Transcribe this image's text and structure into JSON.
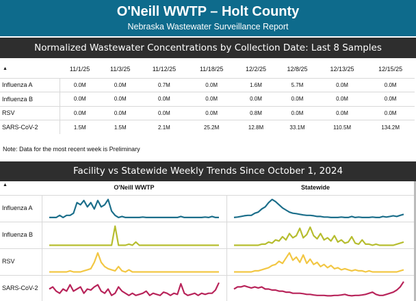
{
  "header": {
    "title": "O'Neill WWTP – Holt County",
    "subtitle": "Nebraska Wastewater Surveillance Report"
  },
  "samples_section": {
    "title": "Normalized Wastewater Concentrations by Collection Date: Last 8 Samples",
    "sort_icon": "▲",
    "dates": [
      "11/1/25",
      "11/3/25",
      "11/12/25",
      "11/18/25",
      "12/2/25",
      "12/8/25",
      "12/13/25",
      "12/15/25"
    ],
    "rows": [
      {
        "label": "Influenza A",
        "values": [
          "0.0M",
          "0.0M",
          "0.7M",
          "0.0M",
          "1.6M",
          "5.7M",
          "0.0M",
          "0.0M"
        ]
      },
      {
        "label": "Influenza B",
        "values": [
          "0.0M",
          "0.0M",
          "0.0M",
          "0.0M",
          "0.0M",
          "0.0M",
          "0.0M",
          "0.0M"
        ]
      },
      {
        "label": "RSV",
        "values": [
          "0.0M",
          "0.0M",
          "0.0M",
          "0.0M",
          "0.8M",
          "0.0M",
          "0.0M",
          "0.0M"
        ]
      },
      {
        "label": "SARS-CoV-2",
        "values": [
          "1.5M",
          "1.5M",
          "2.1M",
          "25.2M",
          "12.8M",
          "33.1M",
          "110.5M",
          "134.2M"
        ]
      }
    ],
    "note": "Note: Data for the most recent week is Preliminary"
  },
  "trends_section": {
    "title": "Facility vs Statewide Weekly Trends Since October 1, 2024",
    "sort_icon": "▲",
    "facility_header": "O'Neill WWTP",
    "statewide_header": "Statewide",
    "rows": [
      {
        "label": "Influenza A",
        "color": "#1b6e8a",
        "facility": [
          0.1,
          0.1,
          0.1,
          0.2,
          0.1,
          0.2,
          0.2,
          0.3,
          0.8,
          0.7,
          0.9,
          0.6,
          0.8,
          0.5,
          0.9,
          0.6,
          0.7,
          0.95,
          0.4,
          0.2,
          0.1,
          0.15,
          0.1,
          0.1,
          0.1,
          0.1,
          0.1,
          0.12,
          0.1,
          0.1,
          0.1,
          0.1,
          0.1,
          0.1,
          0.1,
          0.1,
          0.1,
          0.1,
          0.15,
          0.1,
          0.1,
          0.1,
          0.1,
          0.1,
          0.1,
          0.12,
          0.1,
          0.15,
          0.1,
          0.1
        ],
        "statewide": [
          0.1,
          0.12,
          0.15,
          0.18,
          0.2,
          0.2,
          0.3,
          0.35,
          0.5,
          0.6,
          0.8,
          0.95,
          0.85,
          0.7,
          0.55,
          0.45,
          0.35,
          0.3,
          0.28,
          0.25,
          0.22,
          0.2,
          0.2,
          0.18,
          0.15,
          0.15,
          0.12,
          0.12,
          0.1,
          0.1,
          0.1,
          0.12,
          0.1,
          0.1,
          0.15,
          0.1,
          0.12,
          0.1,
          0.1,
          0.1,
          0.12,
          0.1,
          0.1,
          0.15,
          0.12,
          0.15,
          0.18,
          0.15,
          0.2,
          0.25
        ]
      },
      {
        "label": "Influenza B",
        "color": "#b6bd2f",
        "facility": [
          0.05,
          0.05,
          0.05,
          0.05,
          0.05,
          0.05,
          0.05,
          0.05,
          0.05,
          0.05,
          0.05,
          0.05,
          0.05,
          0.05,
          0.05,
          0.05,
          0.05,
          0.05,
          0.05,
          0.95,
          0.05,
          0.05,
          0.05,
          0.1,
          0.05,
          0.2,
          0.05,
          0.05,
          0.05,
          0.05,
          0.05,
          0.05,
          0.05,
          0.05,
          0.05,
          0.05,
          0.05,
          0.05,
          0.05,
          0.05,
          0.05,
          0.05,
          0.05,
          0.05,
          0.05,
          0.05,
          0.05,
          0.05,
          0.05,
          0.05
        ],
        "statewide": [
          0.05,
          0.05,
          0.05,
          0.05,
          0.05,
          0.05,
          0.05,
          0.05,
          0.1,
          0.1,
          0.2,
          0.15,
          0.3,
          0.25,
          0.45,
          0.3,
          0.6,
          0.4,
          0.5,
          0.85,
          0.4,
          0.55,
          0.9,
          0.5,
          0.35,
          0.6,
          0.3,
          0.4,
          0.25,
          0.5,
          0.2,
          0.3,
          0.15,
          0.2,
          0.45,
          0.15,
          0.1,
          0.3,
          0.1,
          0.1,
          0.05,
          0.1,
          0.05,
          0.05,
          0.05,
          0.05,
          0.05,
          0.1,
          0.15,
          0.2
        ]
      },
      {
        "label": "RSV",
        "color": "#f2c744",
        "facility": [
          0.05,
          0.05,
          0.05,
          0.05,
          0.05,
          0.05,
          0.1,
          0.05,
          0.05,
          0.05,
          0.1,
          0.15,
          0.2,
          0.5,
          0.95,
          0.5,
          0.3,
          0.2,
          0.15,
          0.1,
          0.3,
          0.1,
          0.05,
          0.15,
          0.05,
          0.05,
          0.05,
          0.05,
          0.05,
          0.05,
          0.05,
          0.05,
          0.05,
          0.05,
          0.05,
          0.05,
          0.05,
          0.05,
          0.05,
          0.05,
          0.05,
          0.05,
          0.05,
          0.05,
          0.05,
          0.05,
          0.05,
          0.05,
          0.05,
          0.05
        ],
        "statewide": [
          0.05,
          0.05,
          0.05,
          0.05,
          0.05,
          0.05,
          0.1,
          0.1,
          0.15,
          0.2,
          0.25,
          0.35,
          0.4,
          0.55,
          0.45,
          0.7,
          0.95,
          0.6,
          0.75,
          0.5,
          0.85,
          0.45,
          0.65,
          0.4,
          0.5,
          0.3,
          0.4,
          0.25,
          0.35,
          0.2,
          0.25,
          0.15,
          0.2,
          0.15,
          0.1,
          0.15,
          0.1,
          0.1,
          0.05,
          0.1,
          0.05,
          0.05,
          0.05,
          0.05,
          0.05,
          0.05,
          0.05,
          0.05,
          0.1,
          0.15
        ]
      },
      {
        "label": "SARS-CoV-2",
        "color": "#b8245a",
        "facility": [
          0.5,
          0.6,
          0.4,
          0.3,
          0.5,
          0.4,
          0.7,
          0.4,
          0.5,
          0.6,
          0.3,
          0.5,
          0.45,
          0.6,
          0.7,
          0.4,
          0.3,
          0.5,
          0.2,
          0.3,
          0.6,
          0.4,
          0.3,
          0.2,
          0.3,
          0.2,
          0.25,
          0.3,
          0.4,
          0.2,
          0.3,
          0.25,
          0.2,
          0.35,
          0.3,
          0.2,
          0.3,
          0.25,
          0.75,
          0.3,
          0.2,
          0.25,
          0.3,
          0.2,
          0.3,
          0.25,
          0.3,
          0.3,
          0.45,
          0.8
        ],
        "statewide": [
          0.5,
          0.6,
          0.6,
          0.65,
          0.6,
          0.55,
          0.6,
          0.55,
          0.6,
          0.5,
          0.5,
          0.45,
          0.45,
          0.4,
          0.4,
          0.35,
          0.35,
          0.3,
          0.3,
          0.3,
          0.28,
          0.25,
          0.25,
          0.22,
          0.2,
          0.2,
          0.2,
          0.18,
          0.18,
          0.2,
          0.2,
          0.22,
          0.25,
          0.2,
          0.18,
          0.2,
          0.2,
          0.22,
          0.25,
          0.3,
          0.35,
          0.25,
          0.2,
          0.2,
          0.25,
          0.3,
          0.35,
          0.45,
          0.6,
          0.85
        ]
      }
    ]
  }
}
